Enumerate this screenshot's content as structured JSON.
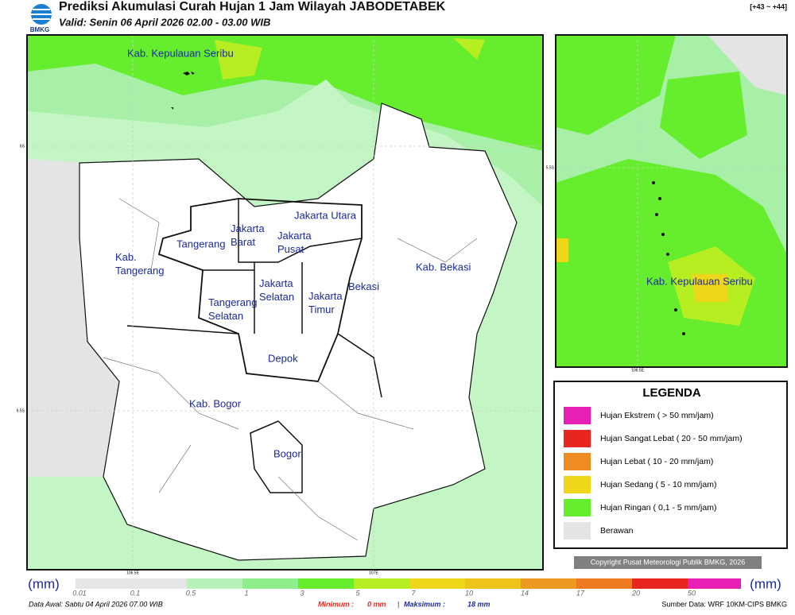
{
  "header": {
    "logo_text": "BMKG",
    "title": "Prediksi Akumulasi Curah Hujan 1 Jam Wilayah JABODETABEK",
    "subtitle": "Valid: Senin 06 April 2026 02.00 - 03.00 WIB",
    "code": "[+43 ~ +44]"
  },
  "map": {
    "labels": [
      "Kab. Kepulauan Seribu",
      "Jakarta Utara",
      "Jakarta Barat",
      "Jakarta Pusat",
      "Tangerang",
      "Kab. Tangerang",
      "Jakarta Selatan",
      "Jakarta Timur",
      "Bekasi",
      "Kab. Bekasi",
      "Tangerang Selatan",
      "Depok",
      "Kab. Bogor",
      "Bogor"
    ],
    "lat_ticks": [
      "6S",
      "6.5S"
    ],
    "lon_ticks": [
      "106.5E",
      "107E"
    ]
  },
  "inset": {
    "label": "Kab. Kepulauan Seribu",
    "lat_tick": "5.5S",
    "lon_tick": "106.5E"
  },
  "legend": {
    "title": "LEGENDA",
    "items": [
      {
        "label": "Hujan Ekstrem ( > 50 mm/jam)",
        "color": "#e81fb4"
      },
      {
        "label": "Hujan Sangat Lebat ( 20 - 50 mm/jam)",
        "color": "#e8261f"
      },
      {
        "label": "Hujan Lebat ( 10 - 20 mm/jam)",
        "color": "#ee8c22"
      },
      {
        "label": "Hujan Sedang ( 5 - 10 mm/jam)",
        "color": "#eed61a"
      },
      {
        "label": "Hujan Ringan ( 0,1 - 5 mm/jam)",
        "color": "#66ee2e"
      },
      {
        "label": "Berawan",
        "color": "#e4e4e4"
      }
    ]
  },
  "copyright": "Copyright Pusat Meteorologi Publik BMKG, 2026",
  "colorbar": {
    "unit_left": "(mm)",
    "unit_right": "(mm)",
    "ticks": [
      "0.01",
      "0.1",
      "0.5",
      "1",
      "3",
      "5",
      "7",
      "10",
      "14",
      "17",
      "20",
      "50"
    ],
    "colors": [
      "#e6e6e6",
      "#e6e6e6",
      "#b8f2b8",
      "#8cef8c",
      "#66ee2e",
      "#b6ee22",
      "#eed61a",
      "#eec41a",
      "#ee9a22",
      "#ee7a22",
      "#e8261f",
      "#e81fb4"
    ]
  },
  "footer": {
    "data_awal": "Data Awal: Sabtu 04 April 2026 07.00 WIB",
    "min_label": "Minimum :",
    "min_value": "0 mm",
    "separator": "|",
    "max_label": "Maksimum :",
    "max_value": "18 mm",
    "source": "Sumber Data: WRF 10KM-CIPS BMKG"
  }
}
